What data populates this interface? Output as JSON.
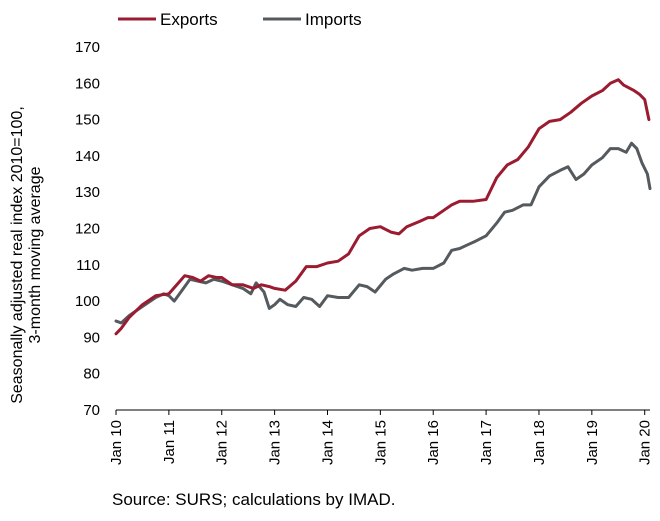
{
  "chart_data": {
    "type": "line",
    "ylabel_lines": [
      "Seasonally adjusted real index 2010=100,",
      "3-month moving average"
    ],
    "ylim": [
      70,
      170
    ],
    "yticks": [
      70,
      80,
      90,
      100,
      110,
      120,
      130,
      140,
      150,
      160,
      170
    ],
    "xlim": [
      2010.0,
      2020.1
    ],
    "xtick_labels": [
      "Jan 10",
      "Jan 11",
      "Jan 12",
      "Jan 13",
      "Jan 14",
      "Jan 15",
      "Jan 16",
      "Jan 17",
      "Jan 18",
      "Jan 19",
      "Jan 20"
    ],
    "legend_position": "top-left",
    "grid": false,
    "series": [
      {
        "name": "Exports",
        "color": "#9b1b30",
        "points": [
          [
            2010.0,
            91
          ],
          [
            2010.1,
            92.5
          ],
          [
            2010.25,
            95.5
          ],
          [
            2010.5,
            99
          ],
          [
            2010.75,
            101.5
          ],
          [
            2011.0,
            102
          ],
          [
            2011.15,
            104.5
          ],
          [
            2011.3,
            107
          ],
          [
            2011.45,
            106.5
          ],
          [
            2011.6,
            105.5
          ],
          [
            2011.75,
            107
          ],
          [
            2011.9,
            106.5
          ],
          [
            2012.0,
            106.5
          ],
          [
            2012.2,
            104.5
          ],
          [
            2012.4,
            104.5
          ],
          [
            2012.6,
            103.5
          ],
          [
            2012.75,
            104.5
          ],
          [
            2012.9,
            104
          ],
          [
            2013.0,
            103.5
          ],
          [
            2013.2,
            103
          ],
          [
            2013.4,
            105.5
          ],
          [
            2013.6,
            109.5
          ],
          [
            2013.8,
            109.5
          ],
          [
            2014.0,
            110.5
          ],
          [
            2014.2,
            111
          ],
          [
            2014.4,
            113
          ],
          [
            2014.6,
            118
          ],
          [
            2014.8,
            120
          ],
          [
            2015.0,
            120.5
          ],
          [
            2015.2,
            119
          ],
          [
            2015.35,
            118.5
          ],
          [
            2015.5,
            120.5
          ],
          [
            2015.75,
            122
          ],
          [
            2015.9,
            123
          ],
          [
            2016.0,
            123
          ],
          [
            2016.2,
            125
          ],
          [
            2016.35,
            126.5
          ],
          [
            2016.5,
            127.5
          ],
          [
            2016.75,
            127.5
          ],
          [
            2017.0,
            128
          ],
          [
            2017.2,
            134
          ],
          [
            2017.4,
            137.5
          ],
          [
            2017.6,
            139
          ],
          [
            2017.8,
            142.5
          ],
          [
            2018.0,
            147.5
          ],
          [
            2018.2,
            149.5
          ],
          [
            2018.4,
            150
          ],
          [
            2018.6,
            152
          ],
          [
            2018.8,
            154.5
          ],
          [
            2019.0,
            156.5
          ],
          [
            2019.2,
            158
          ],
          [
            2019.35,
            160
          ],
          [
            2019.5,
            161
          ],
          [
            2019.6,
            159.5
          ],
          [
            2019.8,
            158
          ],
          [
            2019.9,
            157
          ],
          [
            2020.0,
            155.5
          ],
          [
            2020.08,
            150
          ]
        ]
      },
      {
        "name": "Imports",
        "color": "#555a5e",
        "points": [
          [
            2010.0,
            94.5
          ],
          [
            2010.1,
            94
          ],
          [
            2010.25,
            96
          ],
          [
            2010.5,
            98.5
          ],
          [
            2010.75,
            101
          ],
          [
            2010.9,
            102
          ],
          [
            2011.0,
            101.5
          ],
          [
            2011.1,
            100
          ],
          [
            2011.25,
            103
          ],
          [
            2011.4,
            106
          ],
          [
            2011.55,
            105.5
          ],
          [
            2011.7,
            105
          ],
          [
            2011.85,
            106
          ],
          [
            2012.0,
            105.5
          ],
          [
            2012.2,
            104.5
          ],
          [
            2012.4,
            103.5
          ],
          [
            2012.55,
            102
          ],
          [
            2012.65,
            105
          ],
          [
            2012.8,
            102.5
          ],
          [
            2012.9,
            98
          ],
          [
            2013.0,
            99
          ],
          [
            2013.1,
            100.5
          ],
          [
            2013.25,
            99
          ],
          [
            2013.4,
            98.5
          ],
          [
            2013.55,
            101
          ],
          [
            2013.7,
            100.5
          ],
          [
            2013.85,
            98.5
          ],
          [
            2014.0,
            101.5
          ],
          [
            2014.2,
            101
          ],
          [
            2014.4,
            101
          ],
          [
            2014.6,
            104.5
          ],
          [
            2014.75,
            104
          ],
          [
            2014.9,
            102.5
          ],
          [
            2015.1,
            106
          ],
          [
            2015.25,
            107.5
          ],
          [
            2015.45,
            109
          ],
          [
            2015.6,
            108.5
          ],
          [
            2015.8,
            109
          ],
          [
            2016.0,
            109
          ],
          [
            2016.2,
            110.5
          ],
          [
            2016.35,
            114
          ],
          [
            2016.5,
            114.5
          ],
          [
            2016.65,
            115.5
          ],
          [
            2016.8,
            116.5
          ],
          [
            2017.0,
            118
          ],
          [
            2017.2,
            121.5
          ],
          [
            2017.35,
            124.5
          ],
          [
            2017.5,
            125
          ],
          [
            2017.7,
            126.5
          ],
          [
            2017.85,
            126.5
          ],
          [
            2018.0,
            131.5
          ],
          [
            2018.2,
            134.5
          ],
          [
            2018.4,
            136
          ],
          [
            2018.55,
            137
          ],
          [
            2018.7,
            133.5
          ],
          [
            2018.85,
            135
          ],
          [
            2019.0,
            137.5
          ],
          [
            2019.2,
            139.5
          ],
          [
            2019.35,
            142
          ],
          [
            2019.5,
            142
          ],
          [
            2019.65,
            141
          ],
          [
            2019.75,
            143.5
          ],
          [
            2019.85,
            142
          ],
          [
            2019.95,
            138
          ],
          [
            2020.05,
            135
          ],
          [
            2020.1,
            131
          ]
        ]
      }
    ]
  },
  "legend": {
    "items": [
      "Exports",
      "Imports"
    ]
  },
  "source_text": "Source: SURS; calculations by IMAD."
}
